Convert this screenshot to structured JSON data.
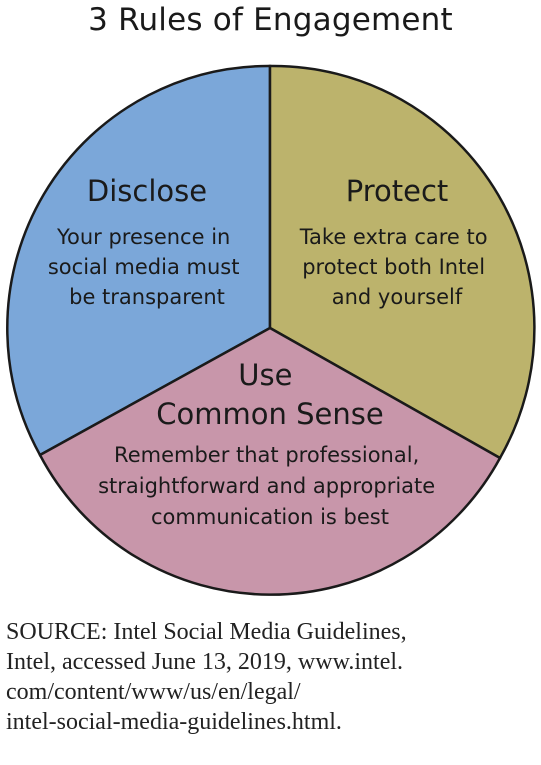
{
  "title": "3 Rules of Engagement",
  "colors": {
    "disclose": "#7ba7d9",
    "protect": "#bcb36c",
    "common_sense": "#c896aa",
    "outline": "#1a1a1a"
  },
  "segments": [
    {
      "key": "disclose",
      "heading_lines": [
        "Disclose"
      ],
      "body_lines": [
        "Your presence in",
        "social media must",
        "be transparent"
      ]
    },
    {
      "key": "protect",
      "heading_lines": [
        "Protect"
      ],
      "body_lines": [
        "Take extra care to",
        "protect both Intel",
        "and yourself"
      ]
    },
    {
      "key": "common_sense",
      "heading_lines": [
        "Use",
        "Common Sense"
      ],
      "body_lines": [
        "Remember that professional,",
        "straightforward and appropriate",
        "communication is best"
      ]
    }
  ],
  "source_lines": [
    "SOURCE: Intel Social Media Guidelines,",
    "Intel, accessed June 13, 2019, www.intel.",
    "com/content/www/us/en/legal/",
    "intel-social-media-guidelines.html."
  ]
}
